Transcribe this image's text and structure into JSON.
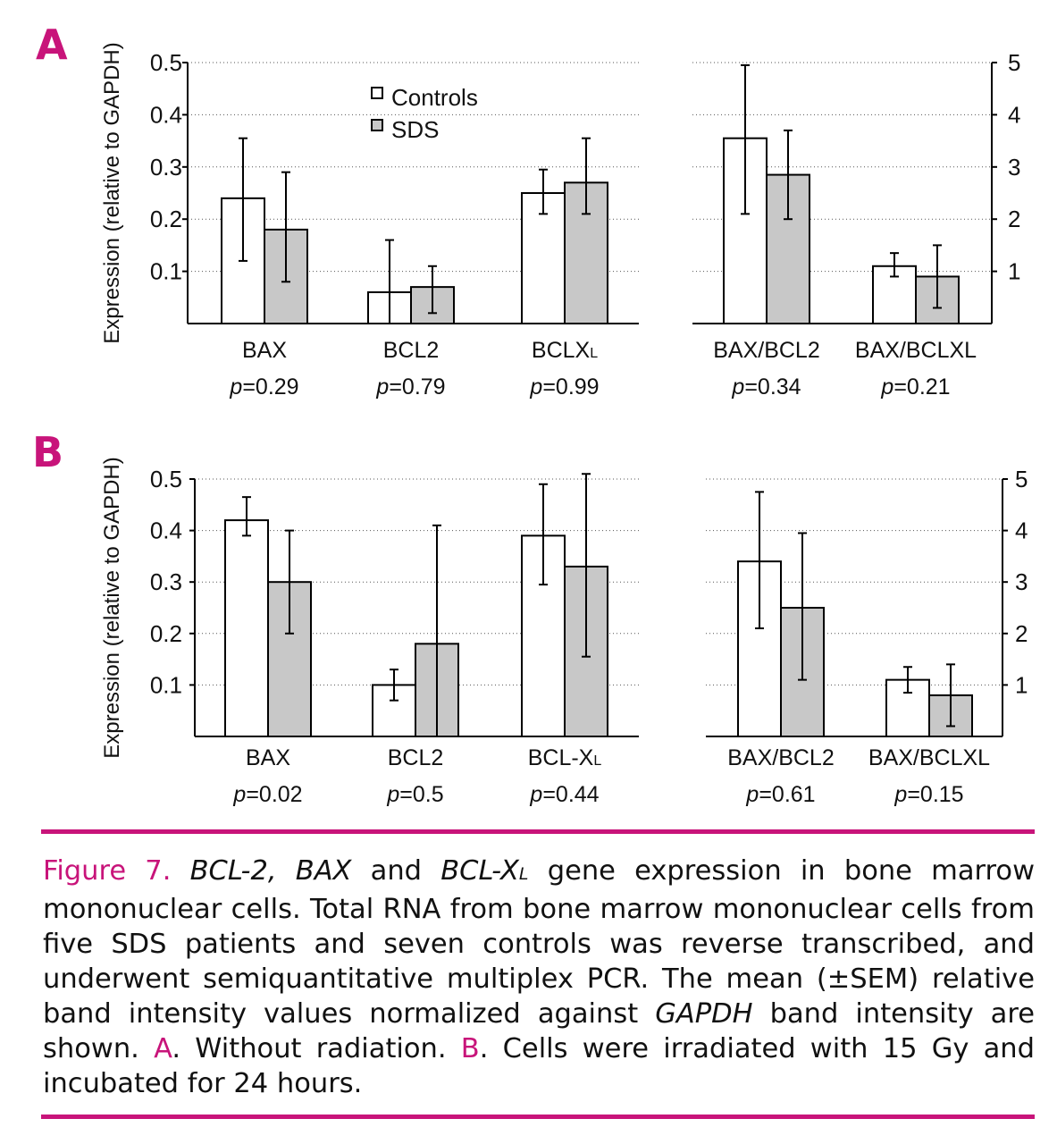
{
  "colors": {
    "accent": "#c8147a",
    "controls_bar": "#ffffff",
    "sds_bar": "#c8c8c8"
  },
  "ylabel": "Expression (relative to GAPDH)",
  "legend": {
    "controls": "Controls",
    "sds": "SDS"
  },
  "chart_data": [
    {
      "panel": "A",
      "type": "bar",
      "subplot": "left",
      "ylabel": "Expression (relative to GAPDH)",
      "ylim": [
        0,
        0.5
      ],
      "yticks": [
        "0.1",
        "0.2",
        "0.3",
        "0.4",
        "0.5"
      ],
      "grid": true,
      "categories": [
        "BAX",
        "BCL2",
        "BCLXL"
      ],
      "p_values": [
        "=0.29",
        "=0.79",
        "=0.99"
      ],
      "series": [
        {
          "name": "Controls",
          "values": [
            0.24,
            0.06,
            0.25
          ],
          "err_low": [
            0.12,
            0.0,
            0.21
          ],
          "err_high": [
            0.355,
            0.16,
            0.295
          ]
        },
        {
          "name": "SDS",
          "values": [
            0.18,
            0.07,
            0.27
          ],
          "err_low": [
            0.08,
            0.02,
            0.21
          ],
          "err_high": [
            0.29,
            0.11,
            0.355
          ]
        }
      ]
    },
    {
      "panel": "A",
      "type": "bar",
      "subplot": "right",
      "ylim": [
        0,
        5
      ],
      "yticks": [
        "1",
        "2",
        "3",
        "4",
        "5"
      ],
      "grid": true,
      "categories": [
        "BAX/BCL2",
        "BAX/BCLXL"
      ],
      "p_values": [
        "=0.34",
        "=0.21"
      ],
      "series": [
        {
          "name": "Controls",
          "values": [
            3.55,
            1.1
          ],
          "err_low": [
            2.1,
            0.9
          ],
          "err_high": [
            4.95,
            1.35
          ]
        },
        {
          "name": "SDS",
          "values": [
            2.85,
            0.9
          ],
          "err_low": [
            2.0,
            0.3
          ],
          "err_high": [
            3.7,
            1.5
          ]
        }
      ]
    },
    {
      "panel": "B",
      "type": "bar",
      "subplot": "left",
      "ylabel": "Expression (relative to GAPDH)",
      "ylim": [
        0,
        0.5
      ],
      "yticks": [
        "0.1",
        "0.2",
        "0.3",
        "0.4",
        "0.5"
      ],
      "grid": true,
      "categories": [
        "BAX",
        "BCL2",
        "BCL-XL"
      ],
      "p_values": [
        "=0.02",
        "=0.5",
        "=0.44"
      ],
      "series": [
        {
          "name": "Controls",
          "values": [
            0.42,
            0.1,
            0.39
          ],
          "err_low": [
            0.39,
            0.07,
            0.295
          ],
          "err_high": [
            0.465,
            0.13,
            0.49
          ]
        },
        {
          "name": "SDS",
          "values": [
            0.3,
            0.18,
            0.33
          ],
          "err_low": [
            0.2,
            0.0,
            0.155
          ],
          "err_high": [
            0.4,
            0.41,
            0.51
          ]
        }
      ]
    },
    {
      "panel": "B",
      "type": "bar",
      "subplot": "right",
      "ylim": [
        0,
        5
      ],
      "yticks": [
        "1",
        "2",
        "3",
        "4",
        "5"
      ],
      "grid": true,
      "categories": [
        "BAX/BCL2",
        "BAX/BCLXL"
      ],
      "p_values": [
        "=0.61",
        "=0.15"
      ],
      "series": [
        {
          "name": "Controls",
          "values": [
            3.4,
            1.1
          ],
          "err_low": [
            2.1,
            0.85
          ],
          "err_high": [
            4.75,
            1.35
          ]
        },
        {
          "name": "SDS",
          "values": [
            2.5,
            0.8
          ],
          "err_low": [
            1.1,
            0.2
          ],
          "err_high": [
            3.95,
            1.4
          ]
        }
      ]
    }
  ],
  "caption": {
    "lead": "Figure 7.",
    "gene1": "BCL-2, BAX",
    "and1": "and",
    "gene2": "BCL-X",
    "gene2_sub": "L",
    "body1": "gene expression in bone marrow mononuclear cells. Total RNA from bone marrow mononuclear cells from five SDS patients and seven controls was reverse transcribed, and underwent semiquantitative multiplex PCR. The mean (±SEM) relative band intensity values normalized against",
    "gapdh": "GAPDH",
    "body2": "band intensity are shown.",
    "label_a": "A",
    "text_a": ". Without radiation.",
    "label_b": "B",
    "text_b": ". Cells were irradiated with 15 Gy and incubated for 24 hours."
  },
  "panels": {
    "a": "A",
    "b": "B"
  },
  "p_prefix": "p"
}
